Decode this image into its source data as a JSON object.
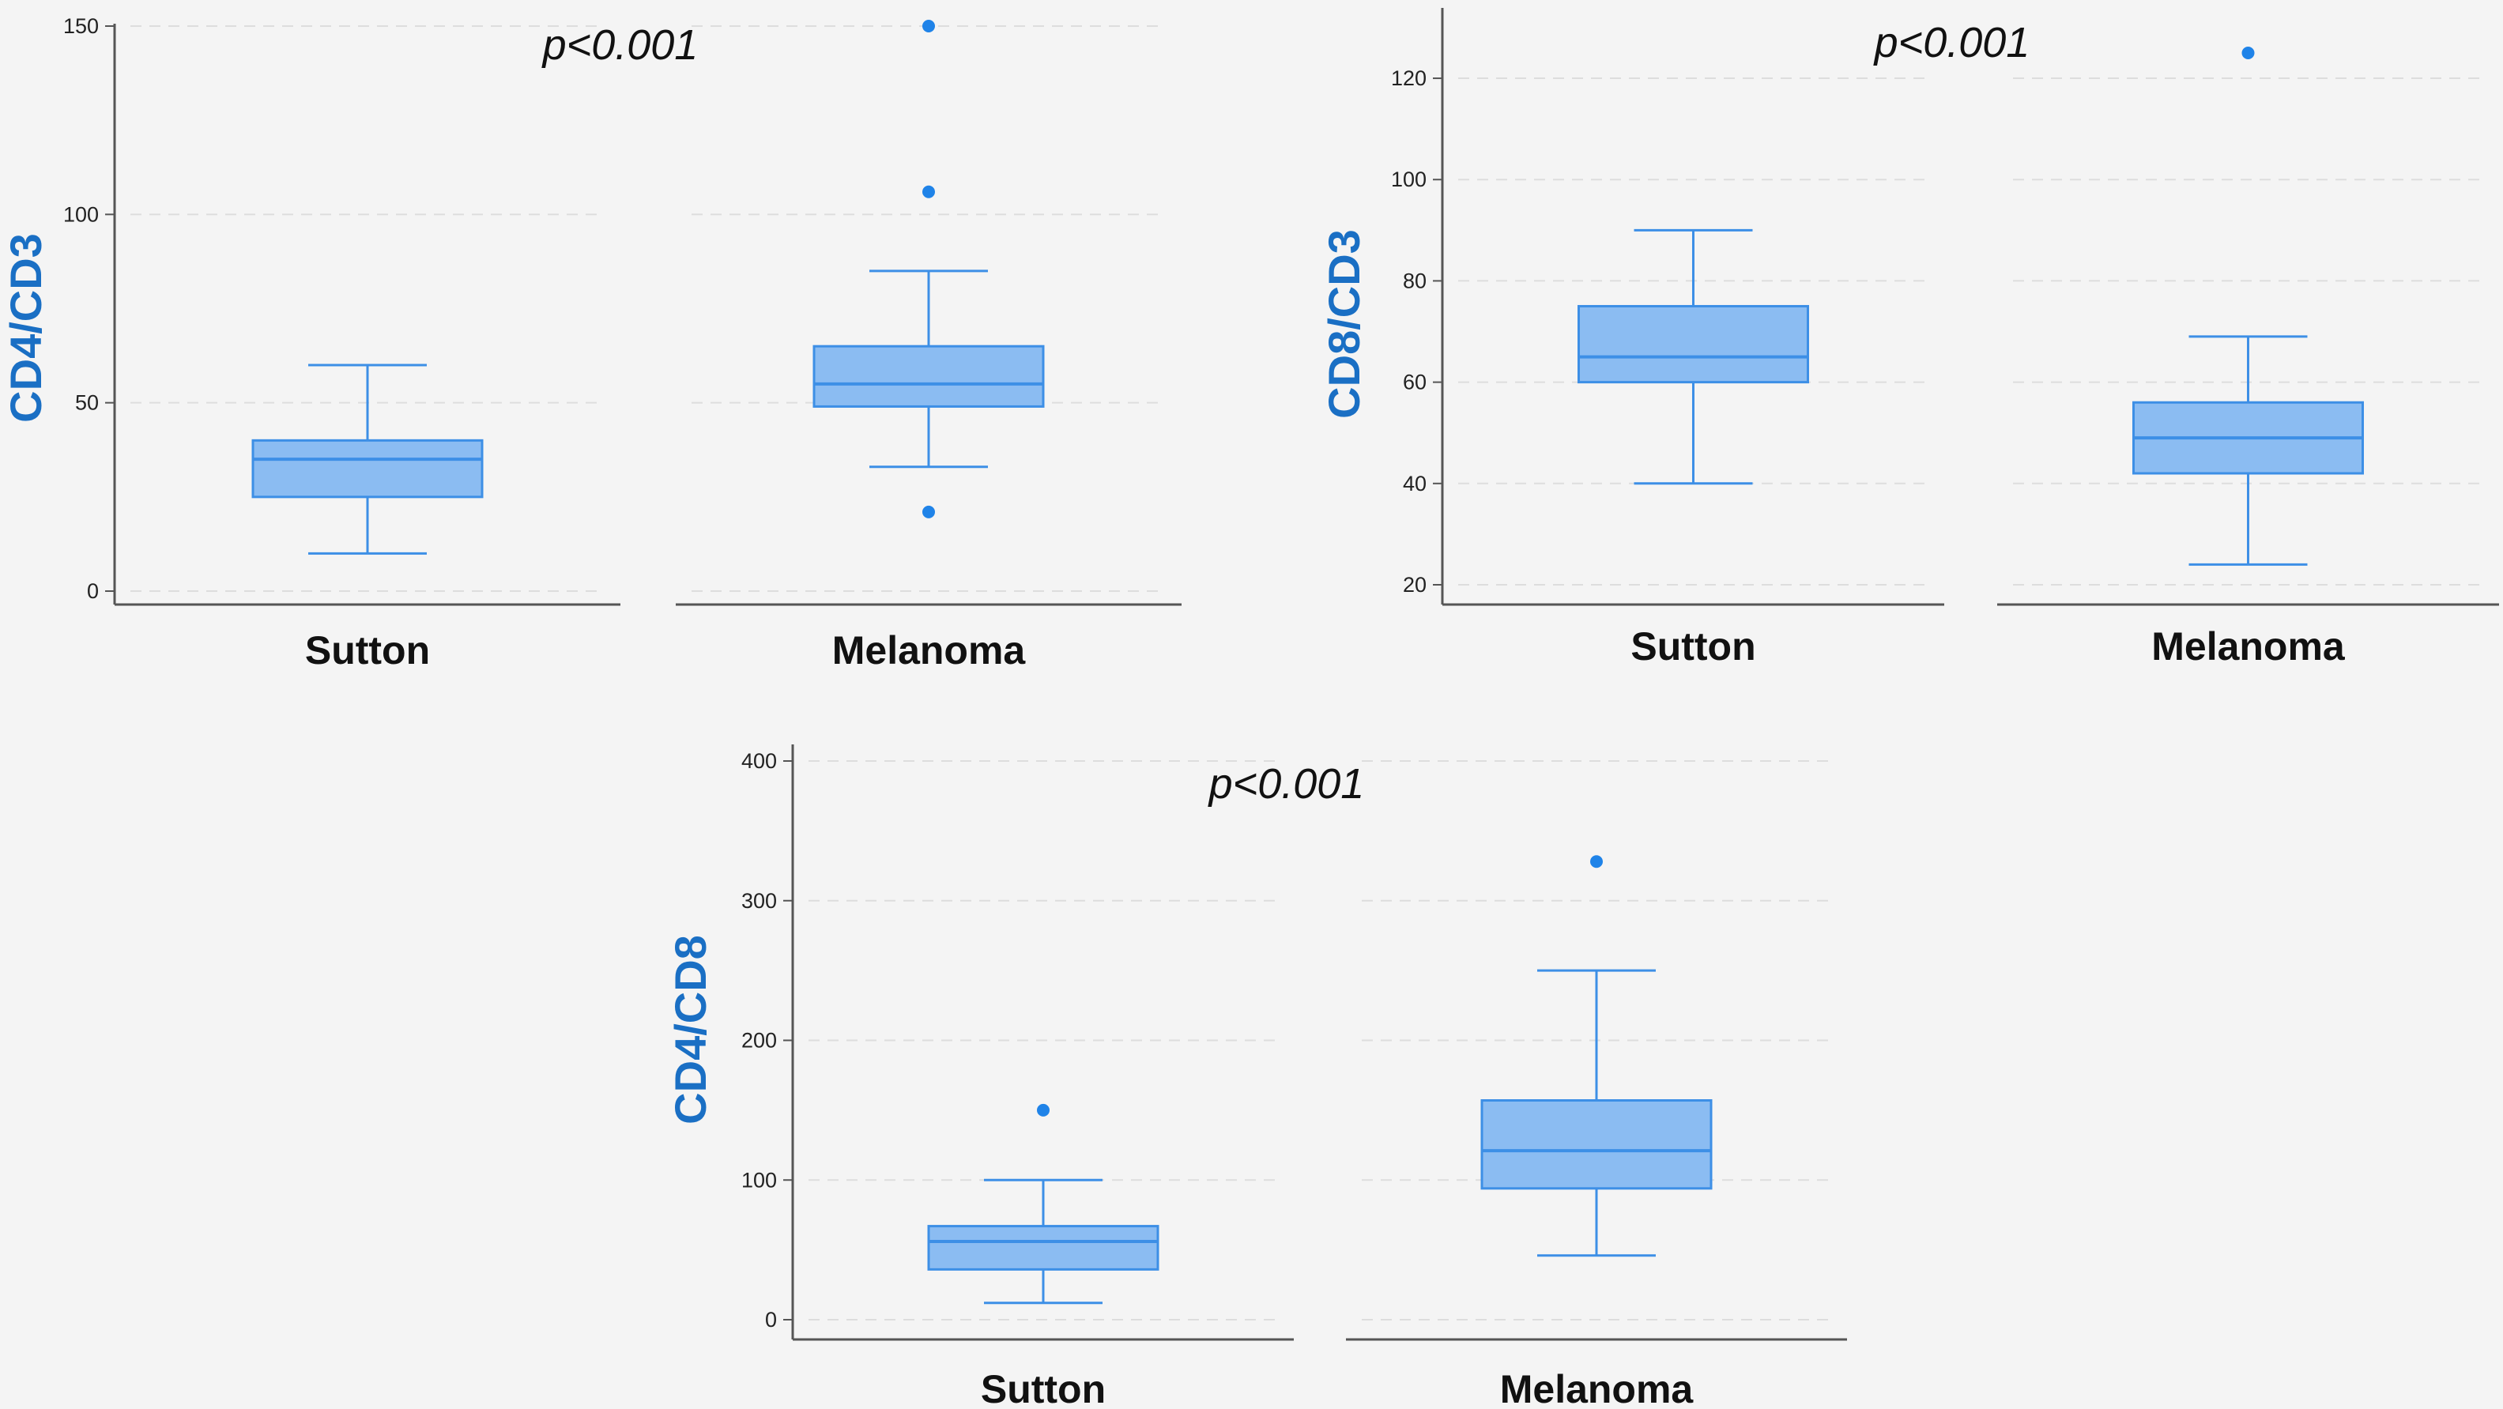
{
  "colors": {
    "box_fill": "#8bbcf2",
    "box_stroke": "#3d8fe6",
    "outlier": "#1f83e8",
    "axis": "#555555",
    "grid": "#dddddd",
    "title": "#1a6fc4",
    "background": "#f4f4f4"
  },
  "chart_data": [
    {
      "type": "box",
      "ylabel": "CD4/CD3",
      "annotation": "p<0.001",
      "ylim": [
        0,
        150
      ],
      "yticks": [
        0,
        50,
        100,
        150
      ],
      "yticks_labels": [
        "0",
        "50",
        "100",
        "150"
      ],
      "grid": true,
      "categories": [
        "Sutton",
        "Melanoma"
      ],
      "series": [
        {
          "category": "Sutton",
          "whisker_low": 10,
          "q1": 25,
          "median": 35,
          "q3": 40,
          "whisker_high": 60,
          "outliers": []
        },
        {
          "category": "Melanoma",
          "whisker_low": 33,
          "q1": 49,
          "median": 55,
          "q3": 65,
          "whisker_high": 85,
          "outliers": [
            21,
            106,
            150
          ]
        }
      ]
    },
    {
      "type": "box",
      "ylabel": "CD8/CD3",
      "annotation": "p<0.001",
      "ylim": [
        20,
        125
      ],
      "yticks": [
        20,
        40,
        60,
        80,
        100,
        120
      ],
      "yticks_labels": [
        "20",
        "40",
        "60",
        "80",
        "100",
        "120"
      ],
      "grid": true,
      "categories": [
        "Sutton",
        "Melanoma"
      ],
      "series": [
        {
          "category": "Sutton",
          "whisker_low": 40,
          "q1": 60,
          "median": 65,
          "q3": 75,
          "whisker_high": 90,
          "outliers": []
        },
        {
          "category": "Melanoma",
          "whisker_low": 24,
          "q1": 42,
          "median": 49,
          "q3": 56,
          "whisker_high": 69,
          "outliers": [
            125
          ]
        }
      ]
    },
    {
      "type": "box",
      "ylabel": "CD4/CD8",
      "annotation": "p<0.001",
      "ylim": [
        0,
        400
      ],
      "yticks": [
        0,
        100,
        200,
        300,
        400
      ],
      "yticks_labels": [
        "0",
        "100",
        "200",
        "300",
        "400"
      ],
      "grid": true,
      "categories": [
        "Sutton",
        "Melanoma"
      ],
      "series": [
        {
          "category": "Sutton",
          "whisker_low": 12,
          "q1": 36,
          "median": 56,
          "q3": 67,
          "whisker_high": 100,
          "outliers": [
            150
          ]
        },
        {
          "category": "Melanoma",
          "whisker_low": 46,
          "q1": 94,
          "median": 121,
          "q3": 157,
          "whisker_high": 250,
          "outliers": [
            328
          ]
        }
      ]
    }
  ]
}
